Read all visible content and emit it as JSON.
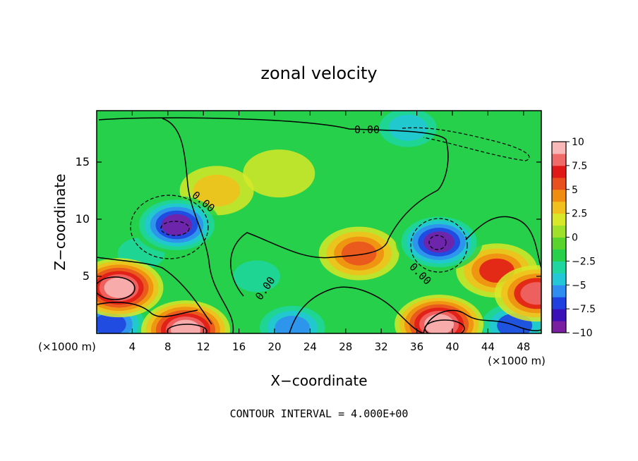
{
  "chart_data": {
    "type": "heatmap",
    "title": "zonal velocity",
    "xlabel": "X−coordinate",
    "ylabel": "Z−coordinate",
    "x_unit_left": "(×1000 m)",
    "x_unit_right": "(×1000 m)",
    "xlim": [
      0,
      50
    ],
    "ylim": [
      0,
      19.5
    ],
    "x_ticks": [
      "4",
      "8",
      "12",
      "16",
      "20",
      "24",
      "28",
      "32",
      "36",
      "40",
      "44",
      "48"
    ],
    "x_tick_values": [
      4,
      8,
      12,
      16,
      20,
      24,
      28,
      32,
      36,
      40,
      44,
      48
    ],
    "y_ticks": [
      "5",
      "10",
      "15"
    ],
    "y_tick_values": [
      5,
      10,
      15
    ],
    "colorbar": {
      "min": -10,
      "max": 10,
      "tick_labels": [
        "10",
        "7.5",
        "5",
        "2.5",
        "0",
        "−2.5",
        "−5",
        "−7.5",
        "−10"
      ],
      "tick_values": [
        10,
        7.5,
        5,
        2.5,
        0,
        -2.5,
        -5,
        -7.5,
        -10
      ],
      "colors": [
        "#7b1fa2",
        "#3a10b8",
        "#1e40e0",
        "#2f8cf0",
        "#22c7d8",
        "#1ed6a0",
        "#26d04a",
        "#5ad42c",
        "#9ee02a",
        "#d8e828",
        "#f2c01c",
        "#f08c10",
        "#e8501e",
        "#e01818",
        "#f06a6a",
        "#f8b8b8"
      ]
    },
    "contour_labels": [
      "0.00",
      "0.00",
      "0.00",
      "0.00"
    ],
    "contour_interval_text": "CONTOUR INTERVAL =  4.000E+00",
    "field_features": [
      {
        "x": 9.0,
        "z": 9.5,
        "value": -9.0
      },
      {
        "x": 38.5,
        "z": 8.0,
        "value": -9.0
      },
      {
        "x": 2.5,
        "z": 4.0,
        "value": 10.0
      },
      {
        "x": 10.0,
        "z": 0.3,
        "value": 10.0
      },
      {
        "x": 38.5,
        "z": 0.8,
        "value": 10.0
      },
      {
        "x": 1.5,
        "z": 0.8,
        "value": -7.0
      },
      {
        "x": 22.0,
        "z": 0.5,
        "value": -6.0
      },
      {
        "x": 47.0,
        "z": 0.7,
        "value": -6.5
      },
      {
        "x": 13.5,
        "z": 12.5,
        "value": 3.0
      },
      {
        "x": 20.5,
        "z": 14.0,
        "value": 2.0
      },
      {
        "x": 29.5,
        "z": 7.0,
        "value": 6.0
      },
      {
        "x": 45.0,
        "z": 5.5,
        "value": 6.5
      },
      {
        "x": 49.5,
        "z": 3.5,
        "value": 8.0
      },
      {
        "x": 35.0,
        "z": 18.0,
        "value": -4.0
      },
      {
        "x": 5.0,
        "z": 7.0,
        "value": -3.0
      },
      {
        "x": 18.0,
        "z": 5.0,
        "value": -3.0
      }
    ]
  }
}
